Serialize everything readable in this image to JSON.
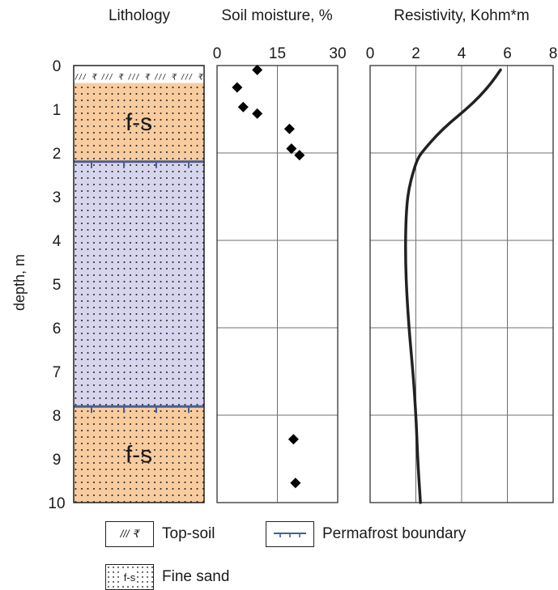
{
  "panels": {
    "lithology_title": "Lithology",
    "depth_label": "depth, m",
    "moisture_title": "Soil moisture, %",
    "resistivity_title": "Resistivity, Kohm*m"
  },
  "lithology": {
    "layers": [
      {
        "name": "Top-soil",
        "top": 0,
        "bottom": 0.4,
        "pattern": "top-soil",
        "label": ""
      },
      {
        "name": "Fine sand (thawed)",
        "top": 0.4,
        "bottom": 2.2,
        "pattern": "fine-sand",
        "color": "#f8cc9f",
        "label": "f-s"
      },
      {
        "name": "Fine sand (frozen)",
        "top": 2.2,
        "bottom": 7.8,
        "pattern": "fine-sand",
        "color": "#d7d5ee",
        "label": ""
      },
      {
        "name": "Fine sand (thawed)",
        "top": 7.8,
        "bottom": 10,
        "pattern": "fine-sand",
        "color": "#f8cc9f",
        "label": "f-s"
      }
    ],
    "permafrost_boundaries": [
      2.2,
      7.8
    ],
    "topsoil_symbol": "/// ₹"
  },
  "chart_data": [
    {
      "type": "scatter",
      "title": "Soil moisture, %",
      "xlabel": "",
      "ylabel": "depth, m",
      "xlim": [
        0,
        30
      ],
      "ylim": [
        10,
        0
      ],
      "xticks": [
        0,
        15,
        30
      ],
      "yticks": [
        0,
        1,
        2,
        3,
        4,
        5,
        6,
        7,
        8,
        9,
        10
      ],
      "grid": true,
      "marker": "diamond",
      "series": [
        {
          "x": [
            10,
            5,
            6.5,
            10,
            18,
            18.5,
            20.5,
            19,
            19.5
          ],
          "y": [
            0.1,
            0.5,
            0.95,
            1.1,
            1.45,
            1.9,
            2.05,
            8.55,
            9.55
          ]
        }
      ]
    },
    {
      "type": "line",
      "title": "Resistivity, Kohm*m",
      "xlabel": "",
      "ylabel": "depth, m",
      "xlim": [
        0,
        8
      ],
      "ylim": [
        10,
        0
      ],
      "xticks": [
        0,
        2,
        4,
        6,
        8
      ],
      "grid": true,
      "series": [
        {
          "x": [
            5.7,
            5.3,
            4.8,
            4.2,
            3.5,
            2.9,
            2.4,
            2.1,
            1.9,
            1.7,
            1.6,
            1.55,
            1.55,
            1.6,
            1.7,
            1.8,
            1.9,
            2.0,
            2.05,
            2.1,
            2.2
          ],
          "y": [
            0.1,
            0.4,
            0.7,
            1.0,
            1.3,
            1.6,
            1.9,
            2.1,
            2.4,
            2.8,
            3.2,
            3.8,
            4.5,
            5.2,
            6.0,
            6.6,
            7.2,
            8.0,
            8.6,
            9.2,
            10.0
          ]
        }
      ]
    }
  ],
  "legend": {
    "topsoil_label": "Top-soil",
    "topsoil_symbol": "/// ₹",
    "permafrost_label": "Permafrost boundary",
    "finesand_label": "Fine sand",
    "finesand_symbol": "f-s"
  },
  "colors": {
    "thawed_sand": "#f8cc9f",
    "frozen_sand": "#d7d5ee",
    "permafrost_line": "#4a5e96",
    "curve": "#222222",
    "grid": "#6f6f6f"
  }
}
